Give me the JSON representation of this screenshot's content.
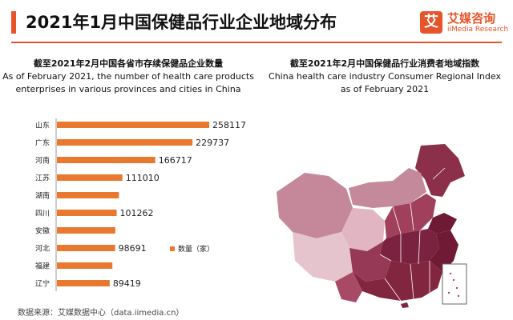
{
  "header": {
    "title": "2021年1月中国保健品行业企业地域分布",
    "logo_mark": "艾",
    "logo_cn": "艾媒咨询",
    "logo_en": "iiMedia Research",
    "accent_color": "#e8542a"
  },
  "left_panel": {
    "title_cn": "截至2021年2月中国各省市存续保健品企业数量",
    "title_en_1": "As of February 2021, the number of health care products",
    "title_en_2": "enterprises in various provinces and cities in China"
  },
  "right_panel": {
    "title_cn": "截至2021年2月中国保健品行业消费者地域指数",
    "title_en_1": "China health care industry Consumer Regional Index",
    "title_en_2": "as of February 2021"
  },
  "chart_data": {
    "type": "bar",
    "orientation": "horizontal",
    "categories": [
      "山东",
      "广东",
      "河南",
      "江苏",
      "湖南",
      "四川",
      "安徽",
      "河北",
      "福建",
      "辽宁"
    ],
    "values": [
      258117,
      229737,
      166717,
      111010,
      null,
      101262,
      null,
      98691,
      null,
      89419
    ],
    "bar_color": "#e8782e",
    "legend": {
      "label": "数量（家）",
      "placement": "right"
    },
    "title": "截至2021年2月中国各省市存续保健品企业数量",
    "xlabel": "",
    "ylabel": ""
  },
  "footer": {
    "source": "数据来源：艾媒数据中心（data.iimedia.cn）"
  }
}
